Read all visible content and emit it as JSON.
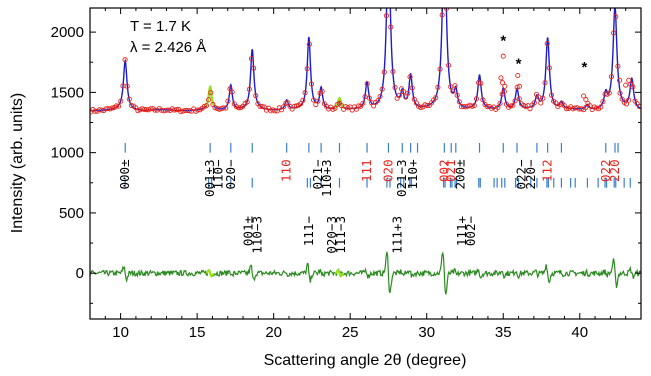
{
  "chart_data": {
    "type": "line",
    "xlabel": "Scattering angle 2θ (degree)",
    "ylabel": "Intensity (arb. units)",
    "xlim": [
      8,
      44
    ],
    "ylim": [
      -380,
      2200
    ],
    "x_ticks": [
      10,
      15,
      20,
      25,
      30,
      35,
      40
    ],
    "y_ticks": [
      0,
      500,
      1000,
      1500,
      2000
    ],
    "annotations": [
      "T = 1.7 K",
      "λ = 2.426 Å"
    ],
    "impurity_markers": [
      {
        "x": 35.0,
        "y": 1890,
        "label": "*"
      },
      {
        "x": 36.0,
        "y": 1700,
        "label": "*"
      },
      {
        "x": 40.3,
        "y": 1670,
        "label": "*"
      }
    ],
    "background": 1350,
    "peaks": [
      {
        "x": 10.3,
        "height": 410,
        "width": 0.14
      },
      {
        "x": 15.85,
        "height": 160,
        "width": 0.12
      },
      {
        "x": 17.2,
        "height": 210,
        "width": 0.12
      },
      {
        "x": 18.6,
        "height": 500,
        "width": 0.13
      },
      {
        "x": 20.85,
        "height": 80,
        "width": 0.12
      },
      {
        "x": 22.3,
        "height": 600,
        "width": 0.13
      },
      {
        "x": 23.1,
        "height": 180,
        "width": 0.12
      },
      {
        "x": 24.3,
        "height": 60,
        "width": 0.12
      },
      {
        "x": 26.1,
        "height": 220,
        "width": 0.13
      },
      {
        "x": 27.5,
        "height": 1400,
        "width": 0.15
      },
      {
        "x": 28.4,
        "height": 120,
        "width": 0.12
      },
      {
        "x": 28.95,
        "height": 280,
        "width": 0.13
      },
      {
        "x": 31.15,
        "height": 1500,
        "width": 0.15
      },
      {
        "x": 31.9,
        "height": 140,
        "width": 0.12
      },
      {
        "x": 33.45,
        "height": 280,
        "width": 0.13
      },
      {
        "x": 35.0,
        "height": 180,
        "width": 0.13
      },
      {
        "x": 35.9,
        "height": 170,
        "width": 0.13
      },
      {
        "x": 37.2,
        "height": 100,
        "width": 0.13
      },
      {
        "x": 37.9,
        "height": 600,
        "width": 0.14
      },
      {
        "x": 38.8,
        "height": 60,
        "width": 0.13
      },
      {
        "x": 40.5,
        "height": 40,
        "width": 0.13
      },
      {
        "x": 41.7,
        "height": 120,
        "width": 0.13
      },
      {
        "x": 42.3,
        "height": 850,
        "width": 0.15
      },
      {
        "x": 43.4,
        "height": 250,
        "width": 0.14
      }
    ],
    "observed_extra": [
      {
        "x": 35.0,
        "value": 1800
      },
      {
        "x": 34.85,
        "value": 1620
      },
      {
        "x": 34.95,
        "value": 1580
      },
      {
        "x": 35.1,
        "value": 1550
      },
      {
        "x": 35.95,
        "value": 1640
      },
      {
        "x": 36.05,
        "value": 1550
      },
      {
        "x": 40.25,
        "value": 1470
      },
      {
        "x": 40.4,
        "value": 1440
      },
      {
        "x": 43.0,
        "value": 1560
      },
      {
        "x": 43.2,
        "value": 1600
      },
      {
        "x": 42.6,
        "value": 1600
      }
    ],
    "reflection_ticks_row1": [
      10.3,
      15.85,
      17.2,
      18.6,
      20.85,
      22.3,
      23.1,
      24.3,
      26.1,
      27.5,
      28.4,
      28.95,
      29.4,
      31.15,
      31.6,
      31.9,
      33.45,
      35.0,
      35.9,
      37.2,
      37.9,
      38.8,
      41.7,
      42.3,
      42.5
    ],
    "reflection_ticks_row2": [
      10.3,
      15.75,
      15.95,
      17.2,
      18.6,
      22.2,
      22.4,
      23.1,
      24.3,
      26.1,
      27.4,
      27.6,
      28.3,
      28.5,
      28.9,
      29.0,
      31.1,
      31.2,
      31.55,
      31.65,
      31.85,
      31.95,
      33.4,
      33.5,
      34.4,
      34.6,
      34.9,
      35.1,
      35.8,
      36.0,
      36.8,
      37.2,
      37.85,
      37.95,
      38.3,
      38.8,
      39.4,
      39.7,
      40.5,
      41.2,
      41.65,
      41.75,
      42.25,
      42.35,
      42.9,
      43.3
    ],
    "hkl_labels": [
      {
        "x": 10.3,
        "y": 1010,
        "text": "000±",
        "color": "#000000"
      },
      {
        "x": 15.85,
        "y": 1010,
        "text": "001±3",
        "color": "#000000"
      },
      {
        "x": 16.4,
        "y": 1010,
        "text": "110−",
        "color": "#000000"
      },
      {
        "x": 17.2,
        "y": 1010,
        "text": "020−",
        "color": "#000000"
      },
      {
        "x": 20.85,
        "y": 1010,
        "text": "110",
        "color": "#e8251d"
      },
      {
        "x": 22.9,
        "y": 1010,
        "text": "021−",
        "color": "#000000"
      },
      {
        "x": 23.5,
        "y": 1010,
        "text": "110+3",
        "color": "#000000"
      },
      {
        "x": 26.1,
        "y": 1010,
        "text": "111",
        "color": "#e8251d"
      },
      {
        "x": 27.5,
        "y": 1010,
        "text": "020",
        "color": "#e8251d"
      },
      {
        "x": 28.4,
        "y": 1010,
        "text": "021−3",
        "color": "#000000"
      },
      {
        "x": 29.1,
        "y": 1010,
        "text": "110+",
        "color": "#000000"
      },
      {
        "x": 31.15,
        "y": 1010,
        "text": "002",
        "color": "#e8251d"
      },
      {
        "x": 31.6,
        "y": 1010,
        "text": "021",
        "color": "#e8251d"
      },
      {
        "x": 32.2,
        "y": 1010,
        "text": "200±",
        "color": "#000000"
      },
      {
        "x": 36.2,
        "y": 1010,
        "text": "022−",
        "color": "#000000"
      },
      {
        "x": 36.8,
        "y": 1010,
        "text": "220−",
        "color": "#000000"
      },
      {
        "x": 37.9,
        "y": 1010,
        "text": "112",
        "color": "#e8251d"
      },
      {
        "x": 41.7,
        "y": 1010,
        "text": "022",
        "color": "#e8251d"
      },
      {
        "x": 42.3,
        "y": 1010,
        "text": "220",
        "color": "#e8251d"
      },
      {
        "x": 18.35,
        "y": 640,
        "text": "001±",
        "color": "#000000"
      },
      {
        "x": 18.95,
        "y": 640,
        "text": "110−3",
        "color": "#000000"
      },
      {
        "x": 22.3,
        "y": 640,
        "text": "111−",
        "color": "#000000"
      },
      {
        "x": 23.8,
        "y": 640,
        "text": "020−3",
        "color": "#000000"
      },
      {
        "x": 24.4,
        "y": 640,
        "text": "111−3",
        "color": "#000000"
      },
      {
        "x": 28.1,
        "y": 640,
        "text": "111+3",
        "color": "#000000"
      },
      {
        "x": 32.3,
        "y": 640,
        "text": "111+",
        "color": "#000000"
      },
      {
        "x": 32.9,
        "y": 640,
        "text": "002−",
        "color": "#000000"
      }
    ],
    "colors": {
      "observed": "#e8251d",
      "calculated": "#1c1ccc",
      "difference": "#2a8a1f",
      "difference_light": "#9be01a",
      "reflection_ticks": "#3a7fd0",
      "hkl_red": "#e8251d"
    },
    "grid": false,
    "legend": "none"
  }
}
